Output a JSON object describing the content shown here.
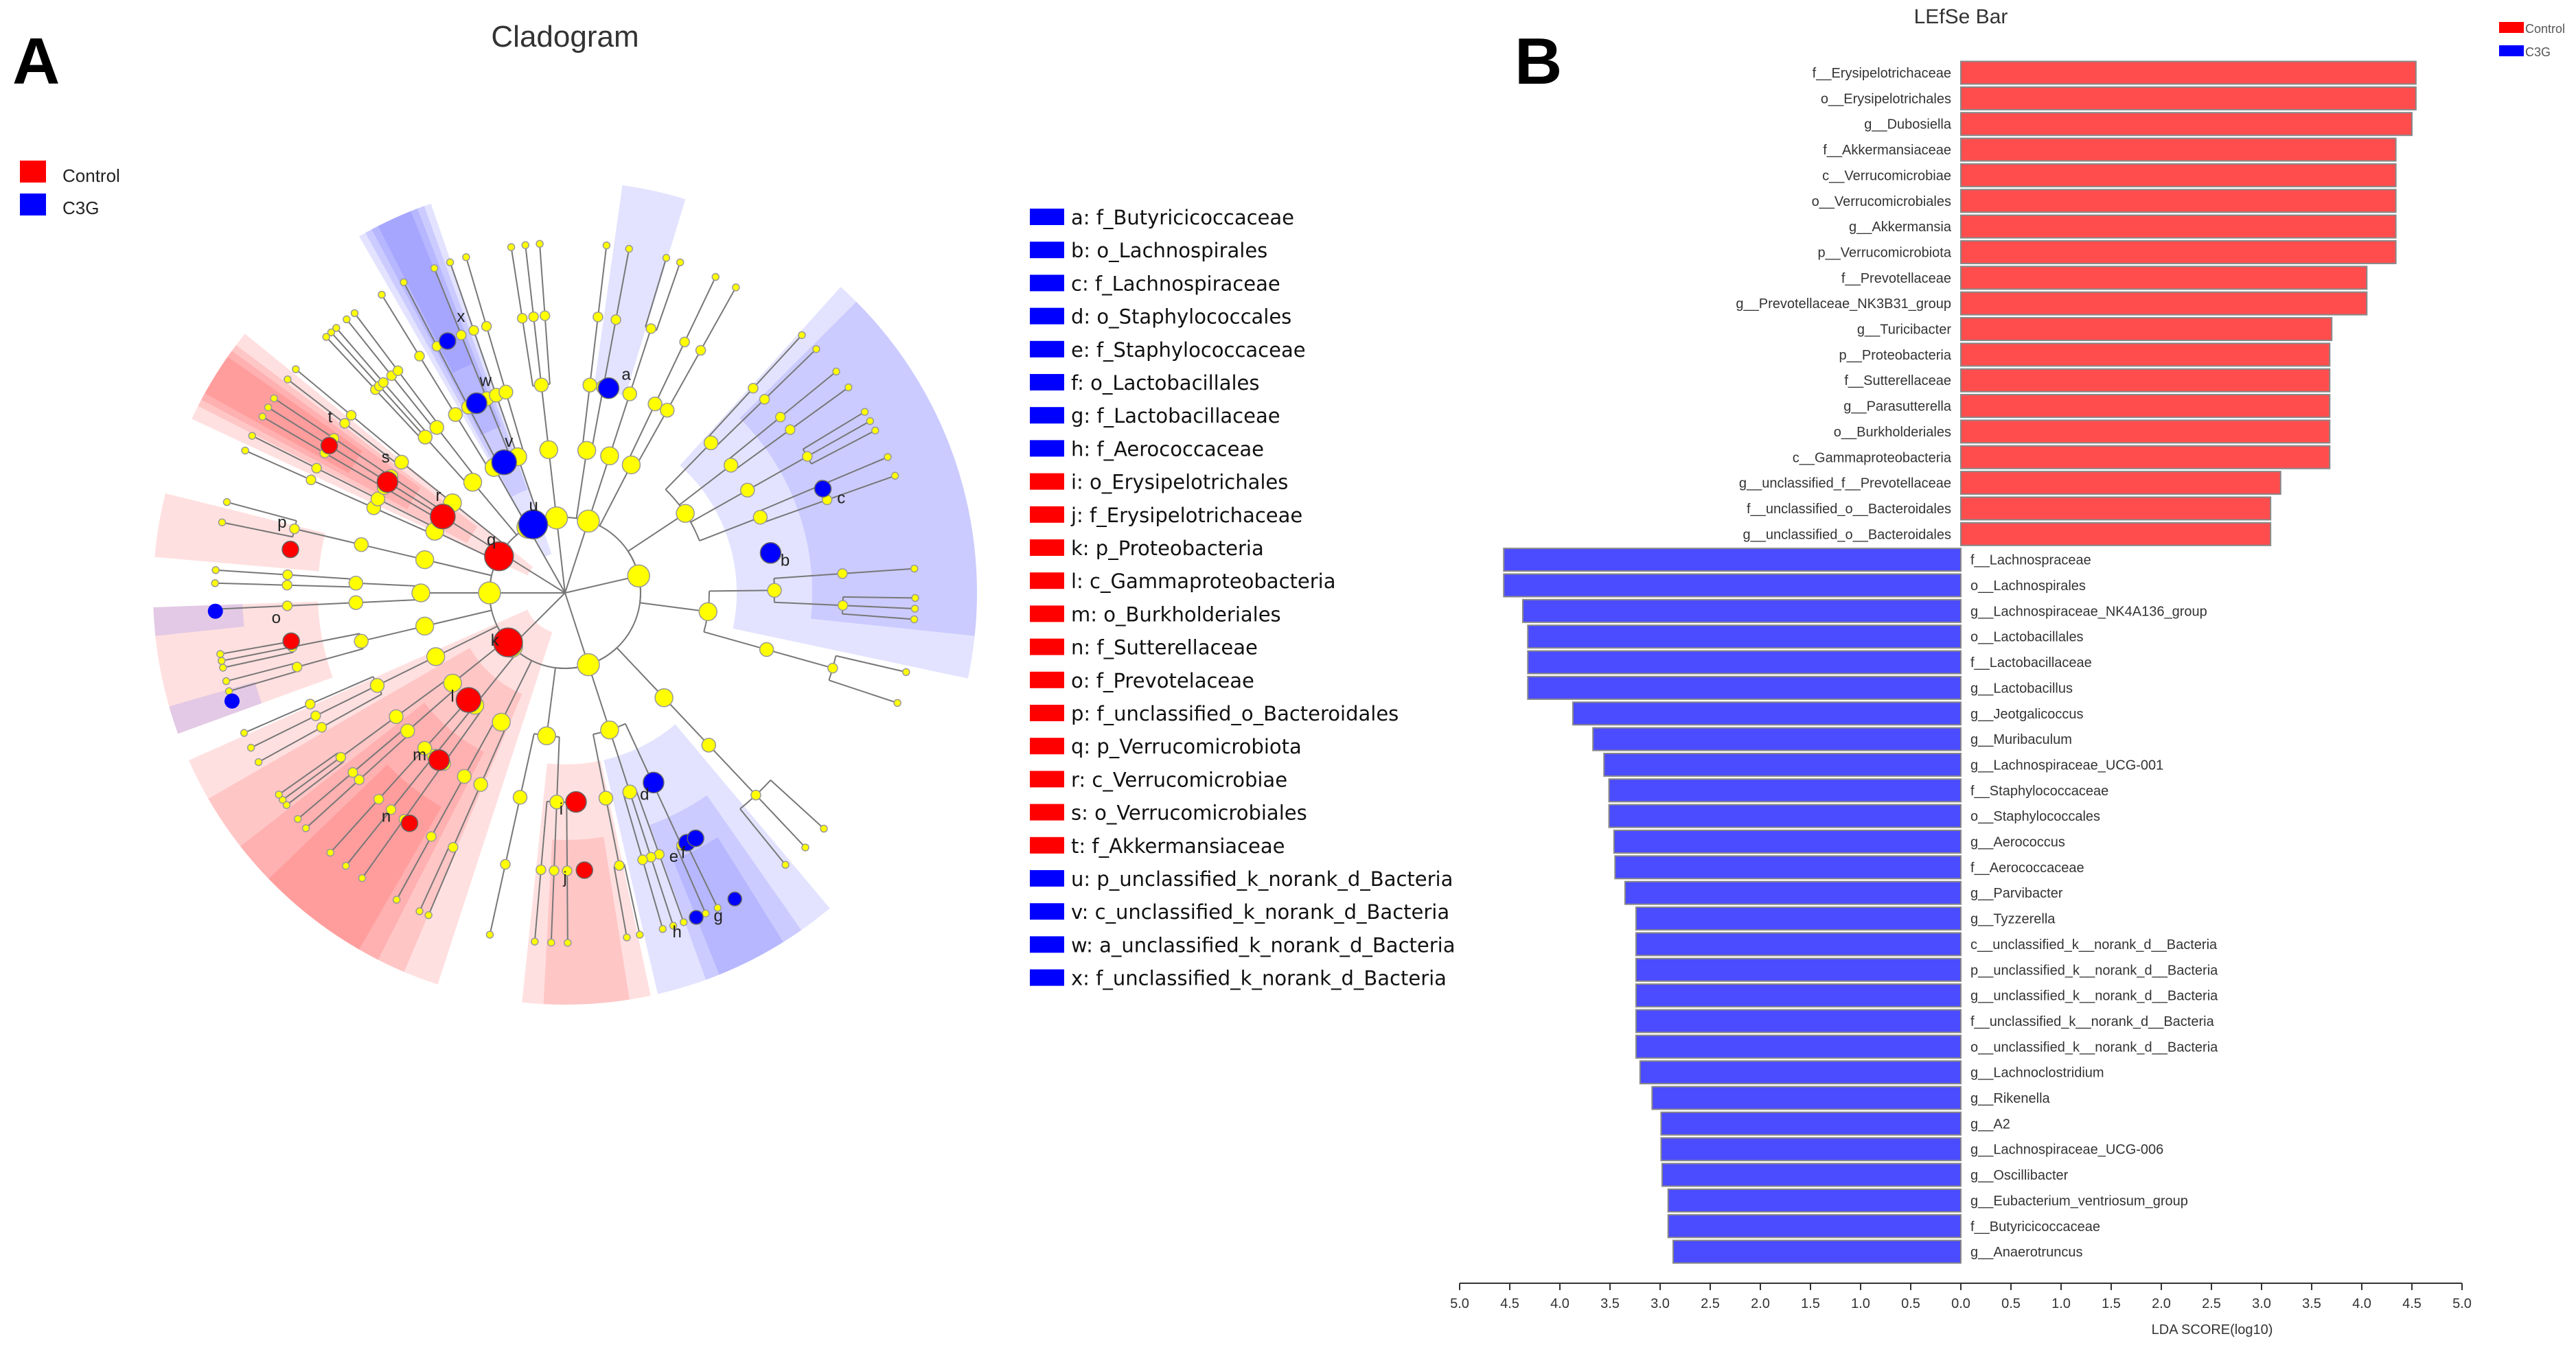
{
  "panels": {
    "a": "A",
    "b": "B"
  },
  "cladogram": {
    "title": "Cladogram",
    "legend": [
      {
        "label": "Control",
        "color": "#FF0000"
      },
      {
        "label": "C3G",
        "color": "#0000FF"
      }
    ],
    "clades": [
      {
        "letter": "a",
        "text": "a: f_Butyricicoccaceae",
        "group": "C3G"
      },
      {
        "letter": "b",
        "text": "b: o_Lachnospirales",
        "group": "C3G"
      },
      {
        "letter": "c",
        "text": "c: f_Lachnospiraceae",
        "group": "C3G"
      },
      {
        "letter": "d",
        "text": "d: o_Staphylococcales",
        "group": "C3G"
      },
      {
        "letter": "e",
        "text": "e: f_Staphylococcaceae",
        "group": "C3G"
      },
      {
        "letter": "f",
        "text": "f: o_Lactobacillales",
        "group": "C3G"
      },
      {
        "letter": "g",
        "text": "g: f_Lactobacillaceae",
        "group": "C3G"
      },
      {
        "letter": "h",
        "text": "h: f_Aerococcaceae",
        "group": "C3G"
      },
      {
        "letter": "i",
        "text": "i: o_Erysipelotrichales",
        "group": "Control"
      },
      {
        "letter": "j",
        "text": "j: f_Erysipelotrichaceae",
        "group": "Control"
      },
      {
        "letter": "k",
        "text": "k: p_Proteobacteria",
        "group": "Control"
      },
      {
        "letter": "l",
        "text": "l: c_Gammaproteobacteria",
        "group": "Control"
      },
      {
        "letter": "m",
        "text": "m: o_Burkholderiales",
        "group": "Control"
      },
      {
        "letter": "n",
        "text": "n: f_Sutterellaceae",
        "group": "Control"
      },
      {
        "letter": "o",
        "text": "o: f_Prevotelaceae",
        "group": "Control"
      },
      {
        "letter": "p",
        "text": "p: f_unclassified_o_Bacteroidales",
        "group": "Control"
      },
      {
        "letter": "q",
        "text": "q: p_Verrucomicrobiota",
        "group": "Control"
      },
      {
        "letter": "r",
        "text": "r: c_Verrucomicrobiae",
        "group": "Control"
      },
      {
        "letter": "s",
        "text": "s: o_Verrucomicrobiales",
        "group": "Control"
      },
      {
        "letter": "t",
        "text": "t: f_Akkermansiaceae",
        "group": "Control"
      },
      {
        "letter": "u",
        "text": "u: p_unclassified_k_norank_d_Bacteria",
        "group": "C3G"
      },
      {
        "letter": "v",
        "text": "v: c_unclassified_k_norank_d_Bacteria",
        "group": "C3G"
      },
      {
        "letter": "w",
        "text": "w: a_unclassified_k_norank_d_Bacteria",
        "group": "C3G"
      },
      {
        "letter": "x",
        "text": "x: f_unclassified_k_norank_d_Bacteria",
        "group": "C3G"
      }
    ]
  },
  "chart_data": {
    "type": "bar",
    "orientation": "horizontal",
    "title": "LEfSe Bar",
    "xlabel": "LDA SCORE(log10)",
    "ylabel": "",
    "xlim": [
      -5.0,
      5.0
    ],
    "xticks": [
      "5.0",
      "4.5",
      "4.0",
      "3.5",
      "3.0",
      "2.5",
      "2.0",
      "1.5",
      "1.0",
      "0.5",
      "0.0",
      "0.5",
      "1.0",
      "1.5",
      "2.0",
      "2.5",
      "3.0",
      "3.5",
      "4.0",
      "4.5",
      "5.0"
    ],
    "legend": [
      {
        "label": "Control",
        "color": "#FF4D4D"
      },
      {
        "label": "C3G",
        "color": "#4B4BFF"
      }
    ],
    "legend_position": "top-right",
    "series": [
      {
        "name": "Control",
        "color": "#FF4D4D",
        "categories": [
          "f__Erysipelotrichaceae",
          "o__Erysipelotrichales",
          "g__Dubosiella",
          "f__Akkermansiaceae",
          "c__Verrucomicrobiae",
          "o__Verrucomicrobiales",
          "g__Akkermansia",
          "p__Verrucomicrobiota",
          "f__Prevotellaceae",
          "g__Prevotellaceae_NK3B31_group",
          "g__Turicibacter",
          "p__Proteobacteria",
          "f__Sutterellaceae",
          "g__Parasutterella",
          "o__Burkholderiales",
          "c__Gammaproteobacteria",
          "g__unclassified_f__Prevotellaceae",
          "f__unclassified_o__Bacteroidales",
          "g__unclassified_o__Bacteroidales"
        ],
        "values": [
          4.54,
          4.54,
          4.5,
          4.34,
          4.34,
          4.34,
          4.34,
          4.34,
          4.05,
          4.05,
          3.7,
          3.68,
          3.68,
          3.68,
          3.68,
          3.68,
          3.19,
          3.09,
          3.09
        ]
      },
      {
        "name": "C3G",
        "color": "#4B4BFF",
        "categories": [
          "f__Lachnospraceae",
          "o__Lachnospirales",
          "g__Lachnospiraceae_NK4A136_group",
          "o__Lactobacillales",
          "f__Lactobacillaceae",
          "g__Lactobacillus",
          "g__Jeotgalicoccus",
          "g__Muribaculum",
          "g__Lachnospiraceae_UCG-001",
          "f__Staphylococcaceae",
          "o__Staphylococcales",
          "g__Aerococcus",
          "f__Aerococcaceae",
          "g__Parvibacter",
          "g__Tyzzerella",
          "c__unclassified_k__norank_d__Bacteria",
          "p__unclassified_k__norank_d__Bacteria",
          "g__unclassified_k__norank_d__Bacteria",
          "f__unclassified_k__norank_d__Bacteria",
          "o__unclassified_k__norank_d__Bacteria",
          "g__Lachnoclostridium",
          "g__Rikenella",
          "g__A2",
          "g__Lachnospiraceae_UCG-006",
          "g__Oscillibacter",
          "g__Eubacterium_ventriosum_group",
          "f__Butyricicoccaceae",
          "g__Anaerotruncus"
        ],
        "values": [
          4.56,
          4.56,
          4.37,
          4.32,
          4.32,
          4.32,
          3.87,
          3.67,
          3.56,
          3.51,
          3.51,
          3.46,
          3.45,
          3.35,
          3.24,
          3.24,
          3.24,
          3.24,
          3.24,
          3.24,
          3.2,
          3.08,
          2.99,
          2.99,
          2.98,
          2.92,
          2.92,
          2.87
        ]
      }
    ]
  }
}
